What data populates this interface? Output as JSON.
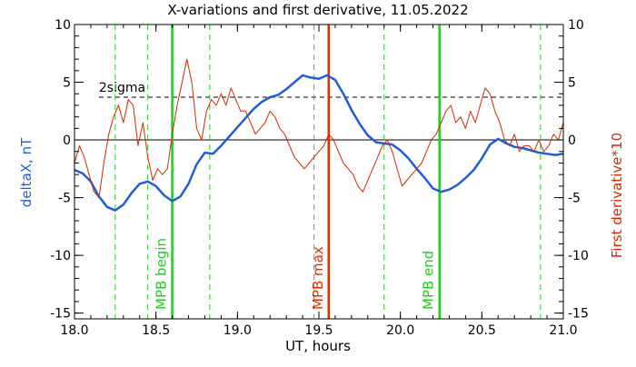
{
  "chart_data": {
    "type": "line",
    "title": "X-variations and first derivative, 11.05.2022",
    "xlabel": "UT, hours",
    "ylabel_left": "deltaX, nT",
    "ylabel_right": "First derivative*10",
    "xlim": [
      18.0,
      21.0
    ],
    "ylim": [
      -15.5,
      10
    ],
    "x_ticks": [
      18.0,
      18.5,
      19.0,
      19.5,
      20.0,
      20.5,
      21.0
    ],
    "x_tick_labels": [
      "18.0",
      "18.5",
      "19.0",
      "19.5",
      "20.0",
      "20.5",
      "21.0"
    ],
    "y_ticks": [
      10,
      5,
      0,
      -5,
      -10,
      -15
    ],
    "y_tick_labels": [
      "10",
      "5",
      "0",
      "-5",
      "-10",
      "-15"
    ],
    "sigma_level": 3.7,
    "sigma_label": "2sigma",
    "colors": {
      "deltaX": "#1f5fd6",
      "derivative": "#d42a00",
      "green": "#22cc22",
      "red": "#e03000",
      "axis": "#000000"
    },
    "series": [
      {
        "name": "deltaX, nT",
        "x": [
          18.0,
          18.05,
          18.1,
          18.15,
          18.2,
          18.25,
          18.3,
          18.35,
          18.4,
          18.45,
          18.5,
          18.55,
          18.6,
          18.65,
          18.7,
          18.75,
          18.8,
          18.85,
          18.9,
          18.95,
          19.0,
          19.05,
          19.1,
          19.15,
          19.2,
          19.25,
          19.3,
          19.35,
          19.4,
          19.45,
          19.5,
          19.55,
          19.6,
          19.65,
          19.7,
          19.75,
          19.8,
          19.85,
          19.9,
          19.95,
          20.0,
          20.05,
          20.1,
          20.15,
          20.2,
          20.25,
          20.3,
          20.35,
          20.4,
          20.45,
          20.5,
          20.55,
          20.6,
          20.65,
          20.7,
          20.75,
          20.8,
          20.85,
          20.9,
          20.95,
          21.0
        ],
        "y": [
          -2.6,
          -2.9,
          -3.6,
          -4.9,
          -5.8,
          -6.1,
          -5.6,
          -4.6,
          -3.8,
          -3.6,
          -4.0,
          -4.8,
          -5.3,
          -4.9,
          -3.8,
          -2.1,
          -1.1,
          -1.2,
          -0.5,
          0.3,
          1.1,
          1.9,
          2.7,
          3.3,
          3.7,
          3.9,
          4.4,
          5.0,
          5.6,
          5.4,
          5.3,
          5.6,
          5.2,
          4.0,
          2.6,
          1.4,
          0.4,
          -0.2,
          -0.3,
          -0.4,
          -0.9,
          -1.6,
          -2.5,
          -3.3,
          -4.2,
          -4.5,
          -4.3,
          -3.9,
          -3.3,
          -2.6,
          -1.6,
          -0.4,
          0.1,
          -0.3,
          -0.6,
          -0.7,
          -0.9,
          -1.1,
          -1.2,
          -1.3,
          -1.2
        ]
      },
      {
        "name": "First derivative*10",
        "x": [
          18.0,
          18.03,
          18.06,
          18.09,
          18.12,
          18.15,
          18.18,
          18.21,
          18.24,
          18.27,
          18.3,
          18.33,
          18.36,
          18.39,
          18.42,
          18.45,
          18.48,
          18.51,
          18.54,
          18.57,
          18.6,
          18.63,
          18.66,
          18.69,
          18.72,
          18.75,
          18.78,
          18.81,
          18.84,
          18.87,
          18.9,
          18.93,
          18.96,
          18.99,
          19.02,
          19.05,
          19.08,
          19.11,
          19.14,
          19.17,
          19.2,
          19.23,
          19.26,
          19.29,
          19.32,
          19.35,
          19.38,
          19.41,
          19.44,
          19.47,
          19.5,
          19.53,
          19.56,
          19.59,
          19.62,
          19.65,
          19.68,
          19.71,
          19.74,
          19.77,
          19.8,
          19.83,
          19.86,
          19.89,
          19.92,
          19.95,
          19.98,
          20.01,
          20.04,
          20.07,
          20.1,
          20.13,
          20.16,
          20.19,
          20.22,
          20.25,
          20.28,
          20.31,
          20.34,
          20.37,
          20.4,
          20.43,
          20.46,
          20.49,
          20.52,
          20.55,
          20.58,
          20.61,
          20.64,
          20.67,
          20.7,
          20.73,
          20.76,
          20.79,
          20.82,
          20.85,
          20.88,
          20.91,
          20.94,
          20.97,
          21.0
        ],
        "y": [
          -2.0,
          -0.5,
          -1.5,
          -3.0,
          -4.5,
          -5.0,
          -2.0,
          0.5,
          2.0,
          3.0,
          1.5,
          3.5,
          3.0,
          -0.5,
          1.5,
          -1.5,
          -3.5,
          -2.5,
          -3.0,
          -2.5,
          0.5,
          3.0,
          5.0,
          7.0,
          5.0,
          1.0,
          0.0,
          2.5,
          3.5,
          3.0,
          4.0,
          3.0,
          4.5,
          3.5,
          2.5,
          2.5,
          1.5,
          0.5,
          1.0,
          1.5,
          2.5,
          2.0,
          1.0,
          0.5,
          -0.5,
          -1.5,
          -2.0,
          -2.5,
          -2.0,
          -1.5,
          -1.0,
          -0.5,
          0.5,
          0.0,
          -1.0,
          -2.0,
          -2.5,
          -3.0,
          -4.0,
          -4.5,
          -3.5,
          -2.5,
          -1.5,
          -0.5,
          0.0,
          -1.0,
          -2.5,
          -4.0,
          -3.5,
          -3.0,
          -2.5,
          -2.0,
          -1.0,
          0.0,
          0.5,
          1.5,
          2.5,
          3.0,
          1.5,
          2.0,
          1.0,
          2.5,
          1.5,
          3.0,
          4.5,
          4.0,
          2.5,
          1.5,
          0.0,
          -0.5,
          0.5,
          -1.0,
          -0.5,
          -0.5,
          -1.0,
          0.0,
          -1.0,
          -0.5,
          0.5,
          0.0,
          1.5
        ]
      }
    ],
    "vlines": [
      {
        "x": 18.25,
        "style": "dashed",
        "color": "green",
        "label": ""
      },
      {
        "x": 18.45,
        "style": "dashed",
        "color": "green",
        "label": ""
      },
      {
        "x": 18.6,
        "style": "solid",
        "color": "green",
        "label": "MPB begin"
      },
      {
        "x": 18.83,
        "style": "dashed",
        "color": "green",
        "label": ""
      },
      {
        "x": 19.47,
        "style": "dashed",
        "color": "green",
        "label": ""
      },
      {
        "x": 19.56,
        "style": "solid",
        "color": "red",
        "label": "MPB max"
      },
      {
        "x": 19.9,
        "style": "dashed",
        "color": "green",
        "label": ""
      },
      {
        "x": 20.24,
        "style": "solid",
        "color": "green",
        "label": "MPB end"
      },
      {
        "x": 20.86,
        "style": "dashed",
        "color": "green",
        "label": ""
      }
    ]
  }
}
